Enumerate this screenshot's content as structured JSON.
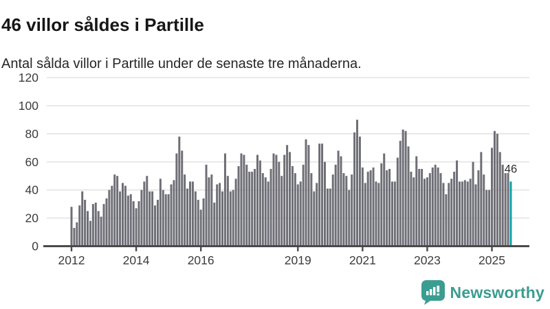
{
  "header": {
    "title": "46 villor såldes i Partille",
    "subtitle": "Antal sålda villor i Partille under de senaste tre månaderna."
  },
  "chart_data": {
    "type": "bar",
    "title": "46 villor såldes i Partille",
    "xlabel": "",
    "ylabel": "",
    "x_start": "2012-01",
    "x_end": "2025-08",
    "x_unit": "month",
    "ylim": [
      0,
      120
    ],
    "yticks": [
      0,
      20,
      40,
      60,
      80,
      100,
      120
    ],
    "xticks": [
      {
        "label": "2012",
        "month_index": 0
      },
      {
        "label": "2014",
        "month_index": 24
      },
      {
        "label": "2016",
        "month_index": 48
      },
      {
        "label": "2019",
        "month_index": 84
      },
      {
        "label": "2021",
        "month_index": 108
      },
      {
        "label": "2023",
        "month_index": 132
      },
      {
        "label": "2025",
        "month_index": 156
      }
    ],
    "grid": true,
    "legend": "none",
    "values": [
      28,
      13,
      17,
      29,
      39,
      33,
      25,
      18,
      30,
      31,
      25,
      21,
      30,
      34,
      40,
      43,
      51,
      50,
      39,
      45,
      43,
      36,
      37,
      32,
      27,
      32,
      40,
      46,
      50,
      39,
      39,
      29,
      33,
      48,
      40,
      37,
      37,
      44,
      47,
      66,
      78,
      68,
      51,
      41,
      46,
      46,
      39,
      33,
      26,
      34,
      58,
      49,
      51,
      31,
      44,
      45,
      39,
      66,
      50,
      39,
      40,
      48,
      57,
      66,
      65,
      58,
      53,
      53,
      55,
      65,
      61,
      52,
      49,
      46,
      55,
      66,
      65,
      60,
      50,
      65,
      72,
      67,
      57,
      52,
      44,
      46,
      58,
      76,
      72,
      52,
      39,
      45,
      73,
      73,
      60,
      41,
      41,
      51,
      58,
      68,
      64,
      52,
      50,
      40,
      51,
      81,
      90,
      78,
      56,
      45,
      53,
      54,
      56,
      46,
      45,
      59,
      66,
      54,
      55,
      46,
      46,
      63,
      75,
      83,
      82,
      71,
      53,
      49,
      64,
      55,
      55,
      48,
      49,
      52,
      56,
      58,
      56,
      52,
      45,
      37,
      45,
      48,
      53,
      61,
      46,
      46,
      47,
      46,
      48,
      60,
      44,
      54,
      67,
      51,
      40,
      40,
      70,
      82,
      80,
      67,
      58,
      52,
      52,
      46
    ],
    "highlight_last_bar": true,
    "annotation": "46",
    "colors": {
      "bar": "#6e6e76",
      "highlight": "#0aa2a4",
      "grid": "#e3e3e3",
      "axis": "#4a4a4a",
      "tick_text": "#3c3c3c",
      "annotation_text": "#2e2e2e"
    }
  },
  "footer": {
    "brand": "Newsworthy",
    "brand_color": "#3b9c90",
    "logo_icon": "bar-chart-speech-bubble"
  }
}
